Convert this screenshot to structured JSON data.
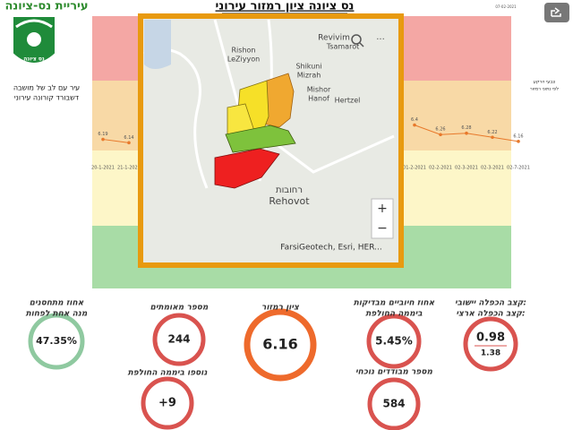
{
  "header": {
    "city": "עיריית נס-ציונה",
    "title": "נס ציונה ציון רמזור עירוני",
    "date": "07-02-2021",
    "logo_text": "נס ציונה",
    "slogan": "עיר עם לב של מושבה",
    "subtitle": "דשבורד קורונה עירוני",
    "legend_note": [
      "צבעי הרקע",
      "לפי נתוני רמזור"
    ]
  },
  "trend": {
    "type": "line",
    "categories": [
      "20-1-2021",
      "21-1-2021",
      null,
      null,
      null,
      null,
      null,
      null,
      null,
      null,
      null,
      null,
      "01-2-2021",
      "02-2-2021",
      "02-3-2021",
      "02-3-2021",
      "02-7-2021"
    ],
    "values": [
      6.19,
      6.14,
      null,
      null,
      null,
      null,
      null,
      null,
      null,
      null,
      null,
      null,
      6.4,
      6.26,
      6.28,
      6.22,
      6.16
    ],
    "ylim": [
      4,
      8
    ],
    "color": "#e8792b"
  },
  "map": {
    "places": [
      "Revivim",
      "Rishon",
      "LeZiyyon",
      "Shikuni",
      "Mizrah",
      "Mishor",
      "Hanof",
      "Hertzel",
      "Tsamarot",
      "Rehovot",
      "רחובות"
    ],
    "attribution": "FarsiGeotech, Esri, HER..."
  },
  "kpis": [
    {
      "title": [
        "אחוז מתחסנים",
        "מנה אחת לפחות"
      ],
      "value": "47.35%",
      "color": "#8fc9a0"
    },
    {
      "title": [
        "מספר מאומתים"
      ],
      "value": "244",
      "color": "#d9534f"
    },
    {
      "title": [
        "נוספו ביממה החולפת"
      ],
      "value": "+9",
      "color": "#d9534f"
    },
    {
      "title": [
        "ציון רמזור"
      ],
      "value": "6.16",
      "color": "#ee6a2c"
    },
    {
      "title": [
        "אחוז חיוביים מבדיקות",
        "ביממה החולפת"
      ],
      "value": "5.45%",
      "color": "#d9534f"
    },
    {
      "title": [
        "מספר מבודדים נוכחי"
      ],
      "value": "584",
      "color": "#d9534f"
    },
    {
      "title": [
        "קצב הכפלה יישובי:",
        "קצב הכפלה ארצי:"
      ],
      "value": [
        "0.98",
        "1.38"
      ],
      "color": "#d9534f"
    }
  ]
}
